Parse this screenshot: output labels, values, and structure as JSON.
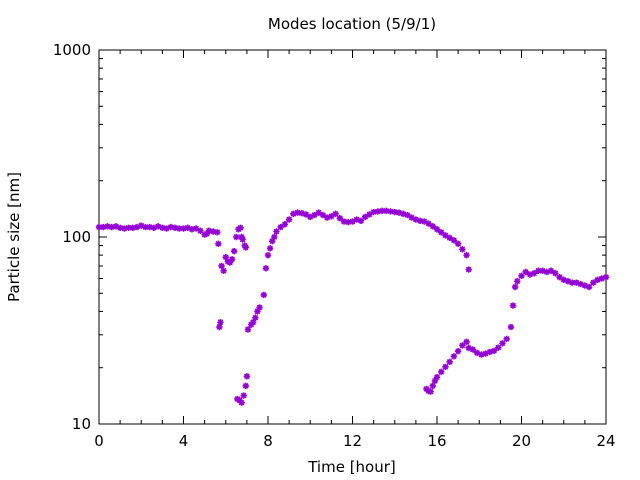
{
  "chart_data": {
    "type": "scatter",
    "title": "Modes location (5/9/1)",
    "xlabel": "Time [hour]",
    "ylabel": "Particle size [nm]",
    "xlim": [
      0,
      24
    ],
    "ylim": [
      10,
      1000
    ],
    "yscale": "log",
    "xticks": [
      0,
      4,
      8,
      12,
      16,
      20,
      24
    ],
    "xtick_labels": [
      "0",
      "4",
      "8",
      "12",
      "16",
      "20",
      "24"
    ],
    "yticks": [
      10,
      100,
      1000
    ],
    "ytick_labels": [
      "10",
      "100",
      "1000"
    ],
    "grid": false,
    "legend": "none",
    "marker_color": "#9400d3",
    "series": [
      {
        "values": [
          [
            0.0,
            113
          ],
          [
            0.2,
            113
          ],
          [
            0.4,
            114
          ],
          [
            0.6,
            113
          ],
          [
            0.8,
            114
          ],
          [
            1.0,
            112
          ],
          [
            1.2,
            111
          ],
          [
            1.4,
            112
          ],
          [
            1.6,
            112
          ],
          [
            1.8,
            113
          ],
          [
            2.0,
            115
          ],
          [
            2.2,
            113
          ],
          [
            2.4,
            113
          ],
          [
            2.6,
            112
          ],
          [
            2.8,
            114
          ],
          [
            3.0,
            112
          ],
          [
            3.2,
            111
          ],
          [
            3.4,
            113
          ],
          [
            3.6,
            112
          ],
          [
            3.8,
            111
          ],
          [
            4.0,
            111
          ],
          [
            4.2,
            112
          ],
          [
            4.4,
            110
          ],
          [
            4.6,
            111
          ],
          [
            4.8,
            108
          ],
          [
            5.0,
            103
          ],
          [
            5.1,
            104
          ],
          [
            5.2,
            108
          ],
          [
            5.4,
            107
          ],
          [
            5.6,
            106
          ],
          [
            5.65,
            92
          ],
          [
            5.7,
            33
          ],
          [
            5.75,
            35
          ],
          [
            5.8,
            70
          ],
          [
            5.9,
            66
          ],
          [
            6.0,
            78
          ],
          [
            6.1,
            74
          ],
          [
            6.2,
            73
          ],
          [
            6.3,
            76
          ],
          [
            6.4,
            84
          ],
          [
            6.5,
            100
          ],
          [
            6.6,
            110
          ],
          [
            6.7,
            112
          ],
          [
            6.75,
            100
          ],
          [
            6.8,
            97
          ],
          [
            6.9,
            90
          ],
          [
            6.95,
            88
          ],
          [
            6.55,
            13.6
          ],
          [
            6.65,
            13.4
          ],
          [
            6.75,
            13.0
          ],
          [
            6.85,
            14.2
          ],
          [
            6.95,
            16.0
          ],
          [
            7.0,
            18.0
          ],
          [
            7.05,
            32
          ],
          [
            7.2,
            34
          ],
          [
            7.3,
            35
          ],
          [
            7.4,
            37
          ],
          [
            7.5,
            40
          ],
          [
            7.6,
            42
          ],
          [
            7.8,
            49
          ],
          [
            7.9,
            68
          ],
          [
            8.0,
            80
          ],
          [
            8.1,
            87
          ],
          [
            8.2,
            95
          ],
          [
            8.3,
            100
          ],
          [
            8.4,
            107
          ],
          [
            8.6,
            113
          ],
          [
            8.8,
            117
          ],
          [
            9.0,
            124
          ],
          [
            9.2,
            133
          ],
          [
            9.4,
            135
          ],
          [
            9.6,
            134
          ],
          [
            9.8,
            132
          ],
          [
            10.0,
            128
          ],
          [
            10.2,
            131
          ],
          [
            10.4,
            135
          ],
          [
            10.6,
            131
          ],
          [
            10.8,
            127
          ],
          [
            11.0,
            129
          ],
          [
            11.2,
            133
          ],
          [
            11.4,
            126
          ],
          [
            11.6,
            121
          ],
          [
            11.8,
            120
          ],
          [
            12.0,
            121
          ],
          [
            12.2,
            124
          ],
          [
            12.4,
            122
          ],
          [
            12.6,
            128
          ],
          [
            12.8,
            132
          ],
          [
            13.0,
            136
          ],
          [
            13.2,
            137
          ],
          [
            13.4,
            138
          ],
          [
            13.6,
            138
          ],
          [
            13.8,
            137
          ],
          [
            14.0,
            136
          ],
          [
            14.2,
            135
          ],
          [
            14.4,
            133
          ],
          [
            14.6,
            131
          ],
          [
            14.8,
            127
          ],
          [
            15.0,
            124
          ],
          [
            15.2,
            122
          ],
          [
            15.4,
            121
          ],
          [
            15.6,
            118
          ],
          [
            15.8,
            114
          ],
          [
            16.0,
            110
          ],
          [
            16.2,
            106
          ],
          [
            16.4,
            102
          ],
          [
            16.6,
            99
          ],
          [
            16.8,
            96
          ],
          [
            17.0,
            92
          ],
          [
            17.2,
            86
          ],
          [
            17.4,
            80
          ],
          [
            17.5,
            67
          ],
          [
            15.5,
            15.4
          ],
          [
            15.6,
            15.0
          ],
          [
            15.7,
            14.9
          ],
          [
            15.8,
            16.0
          ],
          [
            15.9,
            17.0
          ],
          [
            16.0,
            17.8
          ],
          [
            16.2,
            19.0
          ],
          [
            16.4,
            20.2
          ],
          [
            16.6,
            21.5
          ],
          [
            16.8,
            23.0
          ],
          [
            17.0,
            24.5
          ],
          [
            17.2,
            26.3
          ],
          [
            17.4,
            27.5
          ],
          [
            17.5,
            25.5
          ],
          [
            17.7,
            25.0
          ],
          [
            17.9,
            24.0
          ],
          [
            18.1,
            23.5
          ],
          [
            18.3,
            23.8
          ],
          [
            18.5,
            24.3
          ],
          [
            18.7,
            24.6
          ],
          [
            18.9,
            25.6
          ],
          [
            19.1,
            27.0
          ],
          [
            19.3,
            28.5
          ],
          [
            19.5,
            33.0
          ],
          [
            19.6,
            43.0
          ],
          [
            19.7,
            54.0
          ],
          [
            19.8,
            58.0
          ],
          [
            20.0,
            62.0
          ],
          [
            20.2,
            65.0
          ],
          [
            20.4,
            63.0
          ],
          [
            20.6,
            64.0
          ],
          [
            20.8,
            66.0
          ],
          [
            21.0,
            66.0
          ],
          [
            21.2,
            65.0
          ],
          [
            21.4,
            66.0
          ],
          [
            21.6,
            64.0
          ],
          [
            21.8,
            61.0
          ],
          [
            22.0,
            59.0
          ],
          [
            22.2,
            58.0
          ],
          [
            22.4,
            57.0
          ],
          [
            22.6,
            57.0
          ],
          [
            22.8,
            56.0
          ],
          [
            23.0,
            55.0
          ],
          [
            23.2,
            54.0
          ],
          [
            23.4,
            57.0
          ],
          [
            23.6,
            59.0
          ],
          [
            23.8,
            60.0
          ],
          [
            24.0,
            61.0
          ]
        ]
      }
    ]
  }
}
